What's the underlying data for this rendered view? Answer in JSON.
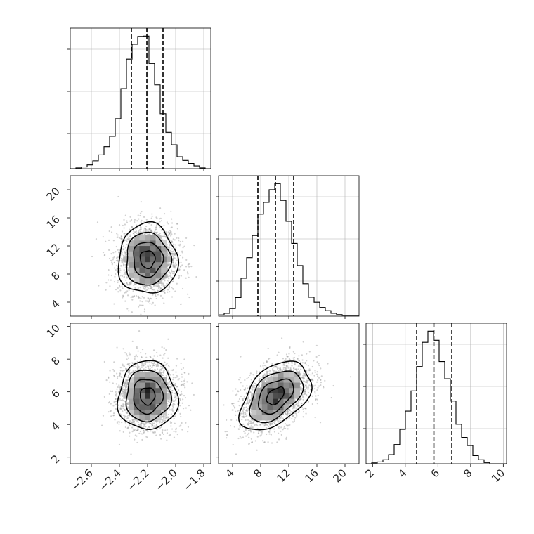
{
  "chart_data": {
    "type": "corner",
    "title": "",
    "parameters": [
      {
        "name": "",
        "range": [
          -2.75,
          -1.75
        ],
        "ticks": [
          -2.6,
          -2.4,
          -2.2,
          -2.0,
          -1.8
        ],
        "tick_labels": [
          "−2.6",
          "−2.4",
          "−2.2",
          "−2.0",
          "−1.8"
        ],
        "quantiles": [
          -2.315,
          -2.205,
          -2.09
        ],
        "histogram": {
          "bin_edges": [
            -2.75,
            -2.71,
            -2.67,
            -2.63,
            -2.59,
            -2.55,
            -2.51,
            -2.47,
            -2.43,
            -2.39,
            -2.35,
            -2.31,
            -2.27,
            -2.23,
            -2.19,
            -2.15,
            -2.11,
            -2.07,
            -2.03,
            -1.99,
            -1.95,
            -1.91,
            -1.87,
            -1.83,
            -1.79,
            -1.75
          ],
          "counts": [
            0,
            4,
            9,
            20,
            42,
            74,
            118,
            174,
            268,
            430,
            588,
            668,
            710,
            712,
            565,
            450,
            295,
            195,
            128,
            64,
            44,
            28,
            15,
            4,
            0
          ]
        }
      },
      {
        "name": "",
        "range": [
          2.0,
          22.0
        ],
        "ticks": [
          4,
          8,
          12,
          16,
          20
        ],
        "tick_labels": [
          "4",
          "8",
          "12",
          "16",
          "20"
        ],
        "quantiles": [
          7.6,
          10.1,
          12.7
        ],
        "histogram": {
          "bin_edges": [
            2.0,
            2.8,
            3.6,
            4.4,
            5.2,
            6.0,
            6.8,
            7.6,
            8.4,
            9.2,
            10.0,
            10.8,
            11.6,
            12.4,
            13.2,
            14.0,
            14.8,
            15.6,
            16.4,
            17.2,
            18.0,
            18.8,
            19.6,
            20.4,
            21.2,
            22.0
          ],
          "counts": [
            8,
            18,
            48,
            118,
            240,
            370,
            510,
            645,
            720,
            800,
            838,
            732,
            600,
            460,
            320,
            205,
            120,
            88,
            55,
            35,
            18,
            10,
            5,
            5,
            5
          ]
        }
      },
      {
        "name": "",
        "range": [
          1.6,
          10.2
        ],
        "ticks": [
          2,
          4,
          6,
          8,
          10
        ],
        "tick_labels": [
          "2",
          "4",
          "6",
          "8",
          "10"
        ],
        "quantiles": [
          4.7,
          5.75,
          6.85
        ],
        "histogram": {
          "bin_edges": [
            1.6,
            1.944,
            2.288,
            2.632,
            2.976,
            3.32,
            3.664,
            4.008,
            4.352,
            4.696,
            5.04,
            5.384,
            5.728,
            6.072,
            6.416,
            6.76,
            7.104,
            7.448,
            7.792,
            8.136,
            8.48,
            8.824,
            9.168,
            9.512,
            9.856,
            10.2
          ],
          "counts": [
            0,
            4,
            9,
            20,
            45,
            95,
            170,
            260,
            360,
            480,
            600,
            655,
            610,
            505,
            420,
            310,
            195,
            130,
            90,
            40,
            20,
            6,
            0,
            0,
            0
          ]
        }
      }
    ],
    "pairs": [
      {
        "x_param": 0,
        "y_param": 1,
        "center": [
          -2.2,
          10.1
        ],
        "spread": [
          0.105,
          2.5
        ],
        "correlation": 0.0
      },
      {
        "x_param": 0,
        "y_param": 2,
        "center": [
          -2.2,
          5.75
        ],
        "spread": [
          0.105,
          1.05
        ],
        "correlation": 0.0
      },
      {
        "x_param": 1,
        "y_param": 2,
        "center": [
          10.1,
          5.75
        ],
        "spread": [
          2.5,
          1.05
        ],
        "correlation": 0.45
      }
    ],
    "contour_levels_sigma": [
      0.5,
      1.0,
      1.5,
      2.0
    ],
    "grid": true,
    "colors": {
      "line": "#000000",
      "points": "#9a9a9a",
      "grid": "#b0b0b0"
    }
  }
}
